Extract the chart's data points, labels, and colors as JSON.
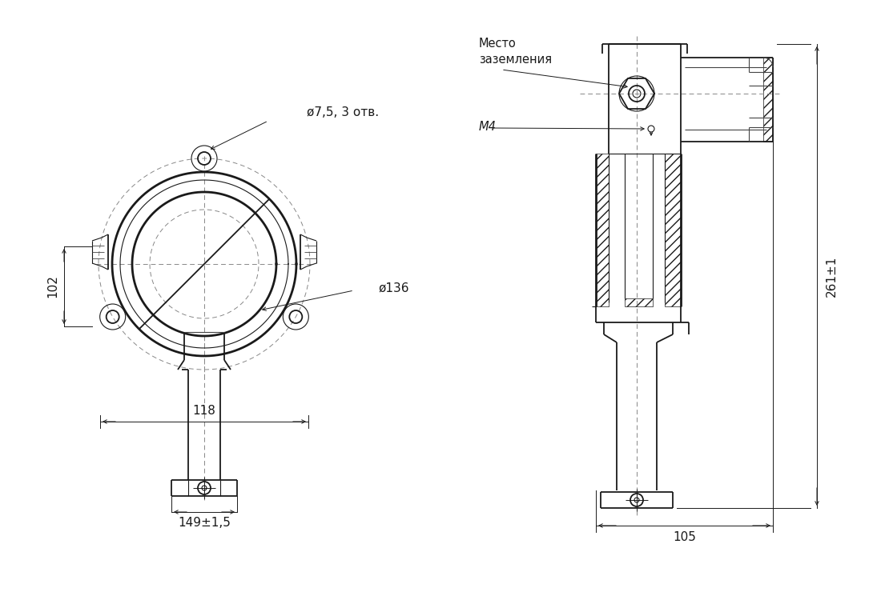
{
  "bg_color": "#ffffff",
  "line_color": "#1a1a1a",
  "dim_color": "#1a1a1a",
  "thin_color": "#444444",
  "dash_color": "#888888",
  "text_color": "#1a1a1a",
  "annotations": {
    "d75_3otv": "ø7,5, 3 отв.",
    "d136": "ø136",
    "dim_102": "102",
    "dim_118": "118",
    "dim_149": "149±1,5",
    "dim_261": "261±1",
    "dim_105": "105",
    "mesto_zazemleniya": "Место\nзаземления",
    "m4": "M4"
  }
}
